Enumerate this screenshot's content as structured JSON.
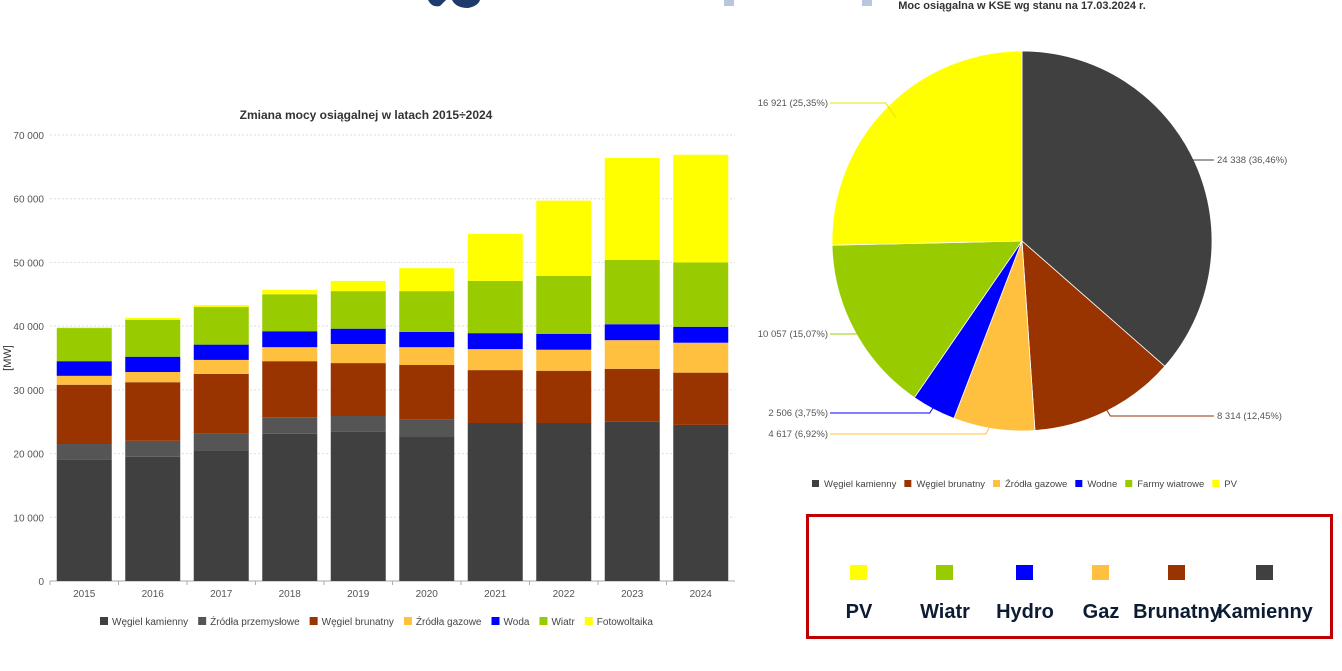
{
  "colors": {
    "kamienny": "#404040",
    "przemyslowe": "#555555",
    "brunatny": "#993300",
    "gaz": "#ffc040",
    "woda": "#0000ff",
    "wiatr": "#99cc00",
    "pv": "#ffff00",
    "box_border": "#c00000",
    "logo": "#1f3b6e"
  },
  "chart_data": [
    {
      "type": "bar",
      "stacked": true,
      "title": "Zmiana mocy osiągalnej w latach 2015÷2024",
      "xlabel": "",
      "ylabel": "[MW]",
      "ylim": [
        0,
        70000
      ],
      "yticks": [
        0,
        10000,
        20000,
        30000,
        40000,
        50000,
        60000,
        70000
      ],
      "ytick_labels": [
        "0",
        "10 000",
        "20 000",
        "30 000",
        "40 000",
        "50 000",
        "60 000",
        "70 000"
      ],
      "grid": true,
      "legend_position": "bottom",
      "categories": [
        "2015",
        "2016",
        "2017",
        "2018",
        "2019",
        "2020",
        "2021",
        "2022",
        "2023",
        "2024"
      ],
      "series": [
        {
          "name": "Węgiel kamienny",
          "color_key": "kamienny",
          "values": [
            19000,
            19500,
            20500,
            23100,
            23400,
            22600,
            24800,
            24800,
            25000,
            24500
          ]
        },
        {
          "name": "Źródła  przemysłowe",
          "color_key": "przemyslowe",
          "values": [
            2500,
            2500,
            2600,
            2600,
            2500,
            2700,
            0,
            0,
            0,
            0
          ]
        },
        {
          "name": "Węgiel brunatny",
          "color_key": "brunatny",
          "values": [
            9300,
            9200,
            9400,
            8800,
            8300,
            8600,
            8300,
            8200,
            8300,
            8200
          ]
        },
        {
          "name": "Źródła gazowe",
          "color_key": "gaz",
          "values": [
            1400,
            1600,
            2200,
            2200,
            3000,
            2800,
            3300,
            3300,
            4500,
            4700
          ]
        },
        {
          "name": "Woda",
          "color_key": "woda",
          "values": [
            2300,
            2400,
            2400,
            2500,
            2400,
            2400,
            2500,
            2500,
            2500,
            2500
          ]
        },
        {
          "name": "Wiatr",
          "color_key": "wiatr",
          "values": [
            5200,
            5800,
            5900,
            5800,
            5900,
            6400,
            8200,
            9100,
            10100,
            10100
          ]
        },
        {
          "name": "Fotowoltaika",
          "color_key": "pv",
          "values": [
            100,
            300,
            300,
            700,
            1600,
            3600,
            7400,
            11800,
            16000,
            16900
          ]
        }
      ]
    },
    {
      "type": "pie",
      "title": "Moc osiągalna w KSE wg stanu na 17.03.2024 r.",
      "legend_position": "bottom",
      "slices": [
        {
          "name": "Węgiel kamienny",
          "color_key": "kamienny",
          "value": 24338,
          "percent": 36.46,
          "label": "24 338 (36,46%)"
        },
        {
          "name": "Węgiel brunatny",
          "color_key": "brunatny",
          "value": 8314,
          "percent": 12.45,
          "label": "8 314 (12,45%)"
        },
        {
          "name": "Źródła gazowe",
          "color_key": "gaz",
          "value": 4617,
          "percent": 6.92,
          "label": "4 617 (6,92%)"
        },
        {
          "name": "Wodne",
          "color_key": "woda",
          "value": 2506,
          "percent": 3.75,
          "label": "2 506 (3,75%)"
        },
        {
          "name": "Farmy wiatrowe",
          "color_key": "wiatr",
          "value": 10057,
          "percent": 15.07,
          "label": "10 057 (15,07%)"
        },
        {
          "name": "PV",
          "color_key": "pv",
          "value": 16921,
          "percent": 25.35,
          "label": "16 921 (25,35%)"
        }
      ]
    }
  ],
  "legend_box": {
    "items": [
      {
        "label": "PV",
        "color_key": "pv"
      },
      {
        "label": "Wiatr",
        "color_key": "wiatr"
      },
      {
        "label": "Hydro",
        "color_key": "woda"
      },
      {
        "label": "Gaz",
        "color_key": "gaz"
      },
      {
        "label": "Brunatny",
        "color_key": "brunatny"
      },
      {
        "label": "Kamienny",
        "color_key": "kamienny"
      }
    ]
  }
}
